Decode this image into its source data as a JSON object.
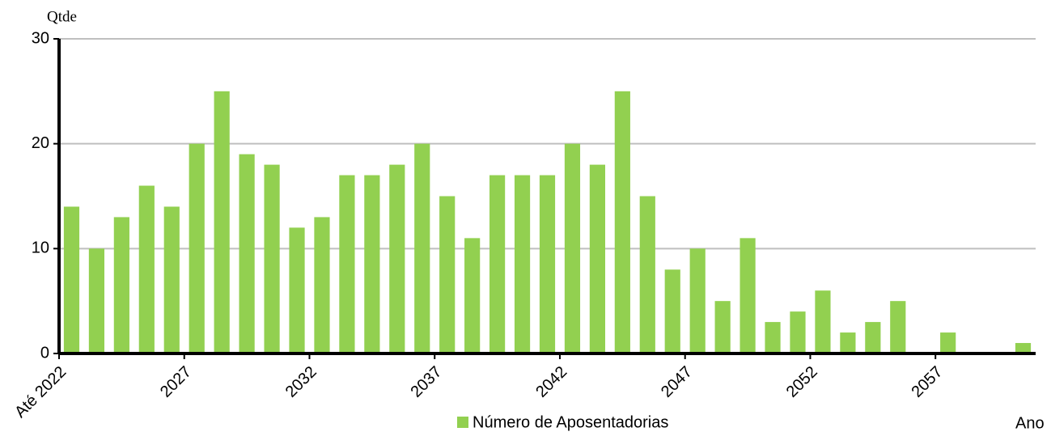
{
  "chart_data": {
    "type": "bar",
    "y_label": "Qtde",
    "x_label": "Ano",
    "categories": [
      "Até 2022",
      null,
      null,
      null,
      null,
      "2027",
      null,
      null,
      null,
      null,
      "2032",
      null,
      null,
      null,
      null,
      "2037",
      null,
      null,
      null,
      null,
      "2042",
      null,
      null,
      null,
      null,
      "2047",
      null,
      null,
      null,
      null,
      "2052",
      null,
      null,
      null,
      null,
      "2057",
      null,
      null,
      null
    ],
    "series": [
      {
        "name": "Número de Aposentadorias",
        "color": "#92d050",
        "values": [
          14,
          10,
          13,
          16,
          14,
          20,
          25,
          19,
          18,
          12,
          13,
          17,
          17,
          18,
          20,
          15,
          11,
          17,
          17,
          17,
          20,
          18,
          25,
          15,
          8,
          10,
          5,
          11,
          3,
          4,
          6,
          2,
          3,
          5,
          0,
          2,
          0,
          0,
          1
        ]
      }
    ],
    "ylim": [
      0,
      30
    ],
    "yticks": [
      0,
      10,
      20,
      30
    ],
    "grid": true,
    "legend": "bottom"
  }
}
